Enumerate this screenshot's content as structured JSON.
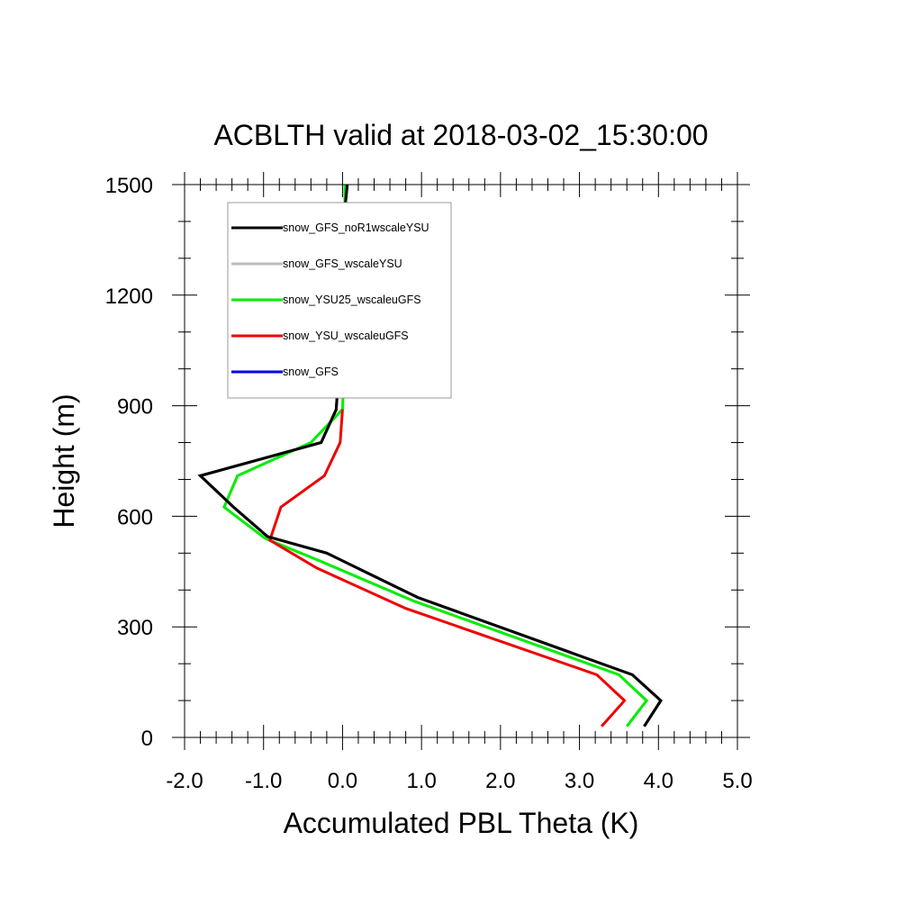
{
  "chart_data": {
    "type": "line",
    "title": "ACBLTH valid at 2018-03-02_15:30:00",
    "xlabel": "Accumulated PBL Theta (K)",
    "ylabel": "Height (m)",
    "xlim": [
      -2.0,
      5.0
    ],
    "ylim": [
      0,
      1500
    ],
    "xticks": [
      -2.0,
      -1.0,
      0.0,
      1.0,
      2.0,
      3.0,
      4.0,
      5.0
    ],
    "xtick_labels": [
      "-2.0",
      "-1.0",
      "0.0",
      "1.0",
      "2.0",
      "3.0",
      "4.0",
      "5.0"
    ],
    "yticks": [
      0,
      300,
      600,
      900,
      1200,
      1500
    ],
    "ytick_labels": [
      "0",
      "300",
      "600",
      "900",
      "1200",
      "1500"
    ],
    "grid": false,
    "legend_position": "top-left inside",
    "series": [
      {
        "name": "snow_GFS_noR1wscaleYSU",
        "color": "#000000",
        "x": [
          3.82,
          4.03,
          3.67,
          0.95,
          -0.2,
          -0.95,
          -1.38,
          -1.8,
          -0.27,
          -0.08,
          -0.03,
          -0.01,
          0.0,
          0.06
        ],
        "y": [
          30,
          100,
          170,
          380,
          500,
          545,
          625,
          710,
          800,
          890,
          1050,
          1200,
          1370,
          1500
        ]
      },
      {
        "name": "snow_GFS_wscaleYSU",
        "color": "#bbbbbb",
        "x": [
          3.6,
          3.85,
          3.5,
          0.9,
          -0.3,
          -0.98,
          -1.5,
          -1.33,
          -0.4,
          0.0,
          0.03,
          0.03,
          0.03,
          0.03
        ],
        "y": [
          30,
          100,
          170,
          370,
          480,
          540,
          625,
          710,
          800,
          890,
          1050,
          1200,
          1370,
          1500
        ]
      },
      {
        "name": "snow_YSU25_wscaleuGFS",
        "color": "#00ee00",
        "x": [
          3.6,
          3.85,
          3.5,
          0.9,
          -0.3,
          -0.98,
          -1.5,
          -1.33,
          -0.4,
          0.0,
          0.03,
          0.03,
          0.03,
          0.03
        ],
        "y": [
          30,
          100,
          170,
          370,
          480,
          540,
          625,
          710,
          800,
          890,
          1050,
          1200,
          1370,
          1500
        ]
      },
      {
        "name": "snow_YSU_wscaleuGFS",
        "color": "#ee0000",
        "x": [
          3.28,
          3.57,
          3.22,
          0.8,
          -0.33,
          -0.92,
          -0.78,
          -0.23,
          -0.03,
          0.0
        ],
        "y": [
          30,
          100,
          170,
          350,
          460,
          535,
          625,
          710,
          800,
          890
        ]
      },
      {
        "name": "snow_GFS",
        "color": "#0000ee",
        "x": [],
        "y": []
      }
    ]
  }
}
